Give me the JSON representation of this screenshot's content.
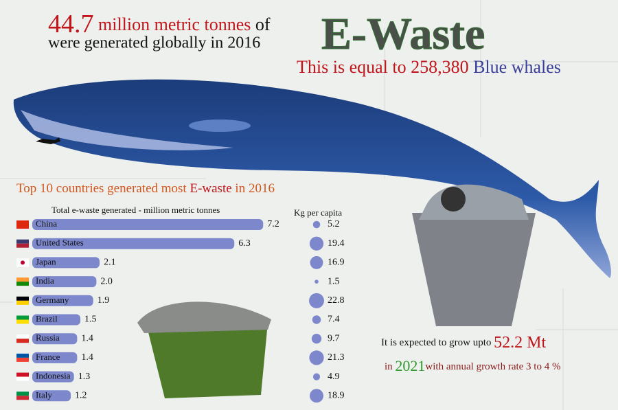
{
  "header": {
    "amount": "44.7",
    "unit": "million metric tonnes",
    "of": "of",
    "line2": "were generated globally in 2016",
    "ewaste": "E-Waste",
    "equal_prefix": "This is equal to",
    "whales": "258,380",
    "whales_suffix": "Blue whales"
  },
  "section": {
    "prefix": "Top 10 countries generated most",
    "highlight": "E-waste",
    "suffix": "in 2016"
  },
  "forecast": {
    "line1": "It is expected to grow upto",
    "amount": "52.2 Mt",
    "in": "in",
    "year": "2021",
    "line2": "with annual growth rate 3 to 4 %"
  },
  "chart_data": [
    {
      "type": "bar",
      "title": "Total e-waste generated - million metric tonnes",
      "color": "#7d88cc",
      "categories": [
        "China",
        "United States",
        "Japan",
        "India",
        "Germany",
        "Brazil",
        "Russia",
        "France",
        "Indonesia",
        "Italy"
      ],
      "values": [
        7.2,
        6.3,
        2.1,
        2,
        1.9,
        1.5,
        1.4,
        1.4,
        1.3,
        1.2
      ],
      "value_labels": [
        "7.2",
        "6.3",
        "2.1",
        "2.0",
        "1.9",
        "1.5",
        "1.4",
        "1.4",
        "1.3",
        "1.2"
      ]
    },
    {
      "type": "bubble",
      "title": "Kg per capita",
      "color": "#7d88cc",
      "values": [
        5.2,
        19.4,
        16.9,
        1.5,
        22.8,
        7.4,
        9.7,
        21.3,
        4.9,
        18.9
      ]
    }
  ]
}
